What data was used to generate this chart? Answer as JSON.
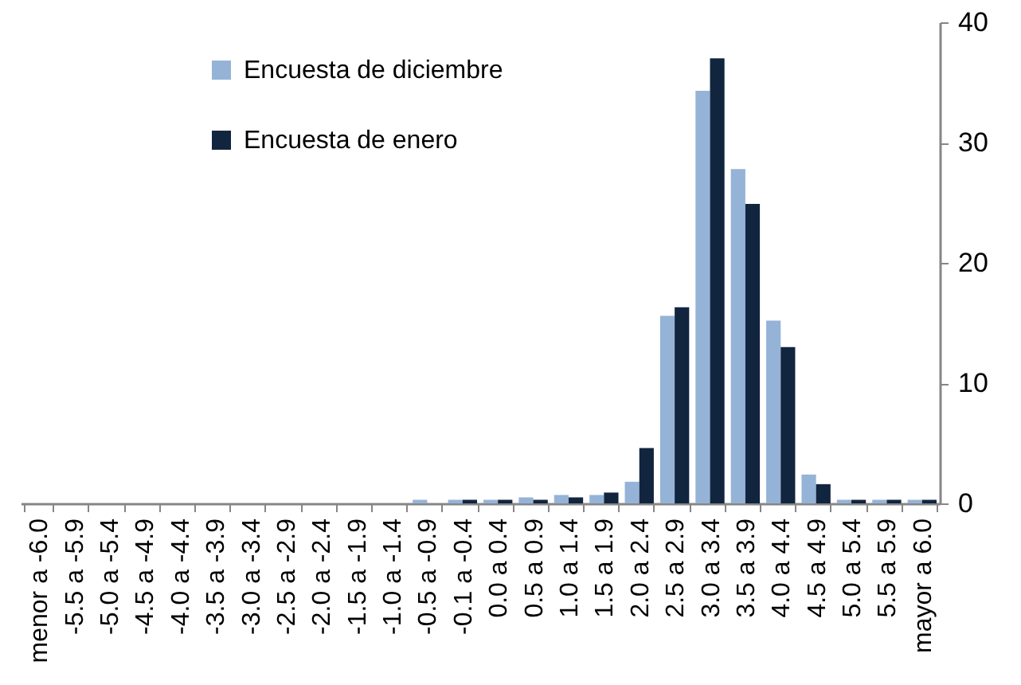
{
  "chart_data": {
    "type": "bar",
    "categories": [
      "menor a -6.0",
      "-5.5 a -5.9",
      "-5.0 a -5.4",
      "-4.5 a -4.9",
      "-4.0 a -4.4",
      "-3.5 a -3.9",
      "-3.0 a -3.4",
      "-2.5 a -2.9",
      "-2.0 a -2.4",
      "-1.5 a -1.9",
      "-1.0 a -1.4",
      "-0.5 a -0.9",
      "-0.1 a -0.4",
      "0.0 a 0.4",
      "0.5 a 0.9",
      "1.0 a 1.4",
      "1.5 a 1.9",
      "2.0 a 2.4",
      "2.5 a 2.9",
      "3.0 a 3.4",
      "3.5 a 3.9",
      "4.0 a 4.4",
      "4.5 a 4.9",
      "5.0 a 5.4",
      "5.5 a 5.9",
      "mayor a 6.0"
    ],
    "series": [
      {
        "name": "Encuesta de diciembre",
        "color": "#95b3d7",
        "values": [
          0,
          0,
          0,
          0,
          0,
          0,
          0,
          0,
          0,
          0,
          0,
          0.3,
          0.3,
          0.3,
          0.5,
          0.7,
          0.7,
          1.8,
          15.6,
          34.3,
          27.8,
          15.2,
          2.4,
          0.3,
          0.3,
          0.3
        ]
      },
      {
        "name": "Encuesta de enero",
        "color": "#12253f",
        "values": [
          0,
          0,
          0,
          0,
          0,
          0,
          0,
          0,
          0,
          0,
          0,
          0,
          0.3,
          0.3,
          0.3,
          0.5,
          0.9,
          4.6,
          16.3,
          37.0,
          24.9,
          13.0,
          1.6,
          0.3,
          0.3,
          0.3
        ]
      }
    ],
    "ylim": [
      0,
      40
    ],
    "yticks": [
      0,
      10,
      20,
      30,
      40
    ],
    "grid": false,
    "legend": "top left"
  }
}
